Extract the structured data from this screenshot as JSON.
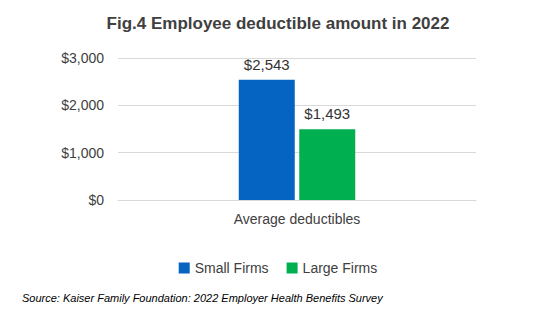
{
  "chart_data": {
    "type": "bar",
    "title": "Fig.4 Employee deductible amount in 2022",
    "categories": [
      "Average deductibles"
    ],
    "series": [
      {
        "name": "Small Firms",
        "color": "#0563C1",
        "values": [
          2543
        ],
        "value_labels": [
          "$2,543"
        ]
      },
      {
        "name": "Large Firms",
        "color": "#00B050",
        "values": [
          1493
        ],
        "value_labels": [
          "$1,493"
        ]
      }
    ],
    "ylim": [
      0,
      3000
    ],
    "yticks": [
      {
        "value": 0,
        "label": "$0"
      },
      {
        "value": 1000,
        "label": "$1,000"
      },
      {
        "value": 2000,
        "label": "$2,000"
      },
      {
        "value": 3000,
        "label": "$3,000"
      }
    ],
    "grid": true,
    "legend": "bottom",
    "data_labels": true,
    "annotation": "Source: Kaiser Family Foundation: 2022 Employer Health Benefits Survey"
  }
}
